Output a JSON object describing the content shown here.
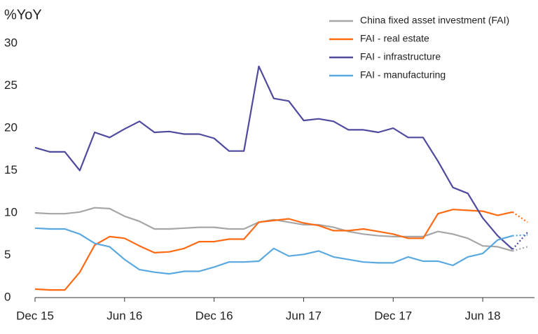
{
  "chart_data": {
    "type": "line",
    "y_label": "%YoY",
    "categories": [
      "Dec 15",
      null,
      null,
      null,
      null,
      null,
      "Jun 16",
      null,
      null,
      null,
      null,
      null,
      "Dec 16",
      null,
      null,
      null,
      null,
      null,
      "Jun 17",
      null,
      null,
      null,
      null,
      null,
      "Dec 17",
      null,
      null,
      null,
      null,
      null,
      "Jun 18",
      null,
      null,
      null
    ],
    "series": [
      {
        "name": "China fixed asset investment (FAI)",
        "color": "#a6a6a6",
        "values": [
          10.0,
          9.9,
          9.9,
          10.1,
          10.6,
          10.5,
          9.6,
          9.0,
          8.1,
          8.1,
          8.2,
          8.3,
          8.3,
          8.1,
          8.1,
          8.9,
          9.2,
          8.9,
          8.6,
          8.6,
          8.3,
          7.8,
          7.5,
          7.3,
          7.2,
          7.2,
          7.2,
          7.8,
          7.5,
          7.0,
          6.1,
          6.0,
          5.5,
          6.0
        ]
      },
      {
        "name": "FAI - real estate",
        "color": "#ff6a13",
        "values": [
          1.0,
          0.9,
          0.9,
          3.0,
          6.2,
          7.2,
          7.0,
          6.1,
          5.3,
          5.4,
          5.8,
          6.6,
          6.6,
          6.9,
          6.9,
          8.9,
          9.1,
          9.3,
          8.8,
          8.5,
          7.9,
          7.9,
          8.1,
          7.8,
          7.5,
          7.0,
          7.0,
          9.9,
          10.4,
          10.3,
          10.2,
          9.7,
          10.1,
          8.9
        ]
      },
      {
        "name": "FAI - infrastructure",
        "color": "#4f4a9e",
        "values": [
          17.7,
          17.2,
          17.2,
          15.0,
          19.5,
          18.9,
          19.9,
          20.8,
          19.5,
          19.6,
          19.3,
          19.3,
          18.8,
          17.3,
          17.3,
          27.3,
          23.5,
          23.2,
          20.9,
          21.1,
          20.8,
          19.8,
          19.8,
          19.5,
          20.0,
          18.9,
          18.9,
          16.1,
          13.0,
          12.3,
          9.4,
          7.3,
          5.7,
          7.7
        ]
      },
      {
        "name": "FAI - manufacturing",
        "color": "#5aa8e0",
        "values": [
          8.2,
          8.1,
          8.1,
          7.5,
          6.4,
          6.0,
          4.5,
          3.3,
          3.0,
          2.8,
          3.1,
          3.1,
          3.6,
          4.2,
          4.2,
          4.3,
          5.8,
          4.9,
          5.1,
          5.5,
          4.8,
          4.5,
          4.2,
          4.1,
          4.1,
          4.8,
          4.3,
          4.3,
          3.8,
          4.8,
          5.2,
          6.8,
          7.3,
          7.4
        ]
      }
    ],
    "ylim": [
      0,
      30
    ],
    "yticks": [
      0,
      5,
      10,
      15,
      20,
      25,
      30
    ],
    "grid": false,
    "legend": "top-right"
  }
}
